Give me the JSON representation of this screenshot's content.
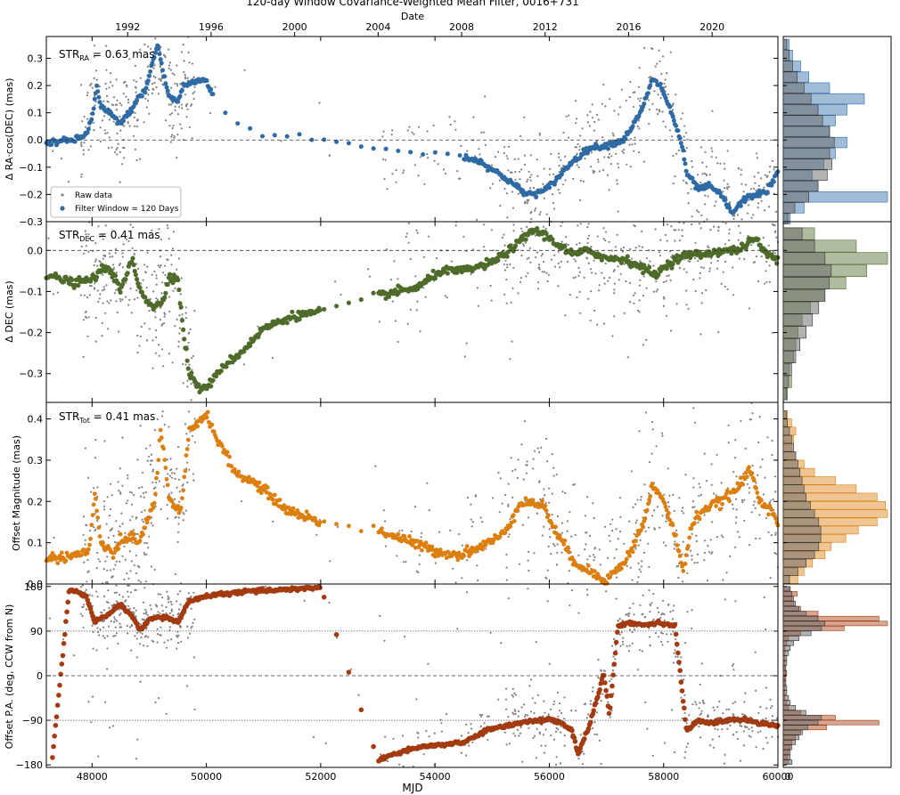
{
  "title": "120-day Window Covariance-Weighted Mean Filter, 0016+731",
  "top_axis_label": "Date",
  "bottom_axis_label": "MJD",
  "colors": {
    "raw": "#808080",
    "ra": "#2e6aa3",
    "dec": "#4e6b2a",
    "tot": "#db7f0f",
    "pa": "#a33a10"
  },
  "chart_data": [
    {
      "type": "scatter",
      "panel": "ra",
      "ylabel": "Δ RA·cos(DEC) (mas)",
      "stat": {
        "base": "STR",
        "sub": "RA",
        "value": " = 0.63 mas"
      },
      "xlim": [
        47200,
        60000
      ],
      "ylim": [
        -0.3,
        0.38
      ],
      "yticks": [
        -0.3,
        -0.2,
        -0.1,
        0.0,
        0.1,
        0.2,
        0.3
      ],
      "yticklabels": [
        "−0.3",
        "−0.2",
        "−0.1",
        "0.0",
        "0.1",
        "0.2",
        "0.3"
      ],
      "legend": {
        "position": "lower-left",
        "entries": [
          "Raw data",
          "Filter Window = 120 Days"
        ]
      },
      "filtered_keypoints": [
        [
          47200,
          -0.01
        ],
        [
          47700,
          0.0
        ],
        [
          47900,
          0.02
        ],
        [
          48020,
          0.1
        ],
        [
          48080,
          0.2
        ],
        [
          48150,
          0.12
        ],
        [
          48300,
          0.1
        ],
        [
          48500,
          0.06
        ],
        [
          48650,
          0.1
        ],
        [
          48800,
          0.15
        ],
        [
          48950,
          0.19
        ],
        [
          49050,
          0.28
        ],
        [
          49150,
          0.35
        ],
        [
          49250,
          0.24
        ],
        [
          49350,
          0.16
        ],
        [
          49500,
          0.14
        ],
        [
          49600,
          0.2
        ],
        [
          49900,
          0.22
        ],
        [
          50000,
          0.22
        ],
        [
          50200,
          0.12
        ],
        [
          50600,
          0.06
        ],
        [
          51000,
          0.02
        ],
        [
          51600,
          0.01
        ],
        [
          52000,
          0.0
        ],
        [
          53000,
          -0.03
        ],
        [
          53600,
          -0.05
        ],
        [
          54000,
          -0.05
        ],
        [
          54300,
          -0.05
        ],
        [
          54800,
          -0.08
        ],
        [
          55300,
          -0.15
        ],
        [
          55600,
          -0.2
        ],
        [
          55900,
          -0.19
        ],
        [
          56100,
          -0.15
        ],
        [
          56400,
          -0.08
        ],
        [
          56700,
          -0.03
        ],
        [
          57000,
          -0.02
        ],
        [
          57300,
          0.0
        ],
        [
          57600,
          0.1
        ],
        [
          57800,
          0.22
        ],
        [
          57950,
          0.2
        ],
        [
          58100,
          0.12
        ],
        [
          58300,
          0.0
        ],
        [
          58400,
          -0.12
        ],
        [
          58600,
          -0.18
        ],
        [
          58800,
          -0.17
        ],
        [
          59000,
          -0.2
        ],
        [
          59200,
          -0.27
        ],
        [
          59400,
          -0.22
        ],
        [
          59600,
          -0.2
        ],
        [
          59800,
          -0.19
        ],
        [
          60000,
          -0.12
        ]
      ],
      "filtered_gaps": [
        [
          50100,
          53000
        ],
        [
          53000,
          54500
        ]
      ],
      "raw_spread": 0.09,
      "histogram": {
        "bin_centers": [
          -0.29,
          -0.25,
          -0.21,
          -0.17,
          -0.13,
          -0.09,
          -0.05,
          -0.01,
          0.03,
          0.07,
          0.11,
          0.15,
          0.19,
          0.23,
          0.27,
          0.31,
          0.35
        ],
        "raw_counts": [
          4,
          10,
          22,
          30,
          38,
          42,
          40,
          44,
          40,
          34,
          30,
          24,
          18,
          12,
          8,
          5,
          3
        ],
        "filtered_counts": [
          6,
          18,
          90,
          30,
          25,
          35,
          45,
          55,
          40,
          45,
          55,
          70,
          40,
          22,
          15,
          8,
          5
        ]
      }
    },
    {
      "type": "scatter",
      "panel": "dec",
      "ylabel": "Δ DEC (mas)",
      "stat": {
        "base": "STR",
        "sub": "DEC",
        "value": " = 0.41 mas"
      },
      "xlim": [
        47200,
        60000
      ],
      "ylim": [
        -0.37,
        0.07
      ],
      "yticks": [
        -0.3,
        -0.2,
        -0.1,
        0.0
      ],
      "yticklabels": [
        "−0.3",
        "−0.2",
        "−0.1",
        "0.0"
      ],
      "filtered_keypoints": [
        [
          47200,
          -0.06
        ],
        [
          47700,
          -0.08
        ],
        [
          48000,
          -0.07
        ],
        [
          48150,
          -0.05
        ],
        [
          48300,
          -0.04
        ],
        [
          48500,
          -0.1
        ],
        [
          48700,
          -0.02
        ],
        [
          48800,
          -0.08
        ],
        [
          48950,
          -0.12
        ],
        [
          49100,
          -0.14
        ],
        [
          49250,
          -0.12
        ],
        [
          49350,
          -0.06
        ],
        [
          49500,
          -0.07
        ],
        [
          49600,
          -0.2
        ],
        [
          49700,
          -0.3
        ],
        [
          49900,
          -0.34
        ],
        [
          50100,
          -0.32
        ],
        [
          50300,
          -0.28
        ],
        [
          50600,
          -0.25
        ],
        [
          51000,
          -0.19
        ],
        [
          51500,
          -0.16
        ],
        [
          52000,
          -0.15
        ],
        [
          53000,
          -0.11
        ],
        [
          53700,
          -0.09
        ],
        [
          54100,
          -0.05
        ],
        [
          54500,
          -0.05
        ],
        [
          55000,
          -0.03
        ],
        [
          55400,
          0.01
        ],
        [
          55700,
          0.05
        ],
        [
          55900,
          0.04
        ],
        [
          56100,
          0.02
        ],
        [
          56400,
          -0.01
        ],
        [
          56700,
          0.0
        ],
        [
          57000,
          -0.02
        ],
        [
          57300,
          -0.02
        ],
        [
          57600,
          -0.04
        ],
        [
          57850,
          -0.06
        ],
        [
          58100,
          -0.03
        ],
        [
          58400,
          -0.01
        ],
        [
          58700,
          -0.01
        ],
        [
          59000,
          0.0
        ],
        [
          59300,
          0.0
        ],
        [
          59600,
          0.03
        ],
        [
          59800,
          -0.01
        ],
        [
          60000,
          -0.02
        ]
      ],
      "filtered_gaps": [
        [
          52000,
          53000
        ]
      ],
      "raw_spread": 0.08,
      "histogram": {
        "bin_centers": [
          -0.35,
          -0.32,
          -0.29,
          -0.26,
          -0.23,
          -0.2,
          -0.17,
          -0.14,
          -0.11,
          -0.08,
          -0.05,
          -0.02,
          0.01,
          0.04
        ],
        "raw_counts": [
          3,
          5,
          8,
          12,
          16,
          22,
          28,
          34,
          40,
          44,
          46,
          40,
          30,
          18
        ],
        "filtered_counts": [
          4,
          8,
          6,
          10,
          12,
          14,
          18,
          26,
          40,
          60,
          80,
          100,
          70,
          30
        ]
      }
    },
    {
      "type": "scatter",
      "panel": "tot",
      "ylabel": "Offset Magnitude (mas)",
      "stat": {
        "base": "STR",
        "sub": "Tot",
        "value": " = 0.41 mas"
      },
      "xlim": [
        47200,
        60000
      ],
      "ylim": [
        0.0,
        0.44
      ],
      "yticks": [
        0.0,
        0.1,
        0.2,
        0.3,
        0.4
      ],
      "yticklabels": [
        "0.0",
        "0.1",
        "0.2",
        "0.3",
        "0.4"
      ],
      "filtered_keypoints": [
        [
          47200,
          0.06
        ],
        [
          47700,
          0.07
        ],
        [
          47950,
          0.08
        ],
        [
          48050,
          0.22
        ],
        [
          48150,
          0.1
        ],
        [
          48350,
          0.07
        ],
        [
          48500,
          0.1
        ],
        [
          48700,
          0.12
        ],
        [
          48800,
          0.09
        ],
        [
          48950,
          0.15
        ],
        [
          49100,
          0.2
        ],
        [
          49200,
          0.38
        ],
        [
          49350,
          0.2
        ],
        [
          49550,
          0.17
        ],
        [
          49700,
          0.37
        ],
        [
          49900,
          0.4
        ],
        [
          50000,
          0.41
        ],
        [
          50200,
          0.35
        ],
        [
          50500,
          0.27
        ],
        [
          50900,
          0.24
        ],
        [
          51400,
          0.18
        ],
        [
          52000,
          0.15
        ],
        [
          53000,
          0.13
        ],
        [
          53600,
          0.1
        ],
        [
          54000,
          0.08
        ],
        [
          54400,
          0.07
        ],
        [
          54800,
          0.09
        ],
        [
          55200,
          0.12
        ],
        [
          55500,
          0.2
        ],
        [
          55900,
          0.19
        ],
        [
          56100,
          0.13
        ],
        [
          56400,
          0.06
        ],
        [
          56700,
          0.03
        ],
        [
          57000,
          0.01
        ],
        [
          57300,
          0.05
        ],
        [
          57500,
          0.1
        ],
        [
          57700,
          0.17
        ],
        [
          57800,
          0.24
        ],
        [
          58000,
          0.2
        ],
        [
          58200,
          0.12
        ],
        [
          58350,
          0.03
        ],
        [
          58500,
          0.15
        ],
        [
          58700,
          0.18
        ],
        [
          59000,
          0.2
        ],
        [
          59200,
          0.22
        ],
        [
          59400,
          0.25
        ],
        [
          59500,
          0.28
        ],
        [
          59700,
          0.2
        ],
        [
          59900,
          0.18
        ],
        [
          60000,
          0.14
        ]
      ],
      "filtered_gaps": [
        [
          52000,
          53000
        ]
      ],
      "raw_spread": 0.1,
      "histogram": {
        "bin_centers": [
          0.01,
          0.03,
          0.05,
          0.07,
          0.09,
          0.11,
          0.13,
          0.15,
          0.17,
          0.19,
          0.21,
          0.23,
          0.25,
          0.27,
          0.29,
          0.31,
          0.33,
          0.35,
          0.37,
          0.39,
          0.41
        ],
        "raw_counts": [
          6,
          14,
          22,
          30,
          34,
          36,
          36,
          34,
          30,
          26,
          22,
          20,
          18,
          16,
          14,
          12,
          10,
          8,
          6,
          4,
          3
        ],
        "filtered_counts": [
          14,
          20,
          28,
          40,
          46,
          60,
          72,
          90,
          100,
          98,
          90,
          70,
          50,
          30,
          20,
          12,
          8,
          10,
          12,
          8,
          4
        ]
      }
    },
    {
      "type": "scatter",
      "panel": "pa",
      "ylabel": "Offset P.A. (deg, CCW from N)",
      "xlim": [
        47200,
        60000
      ],
      "ylim": [
        -185,
        185
      ],
      "yticks": [
        -180,
        -90,
        0,
        90,
        180
      ],
      "yticklabels": [
        "−180",
        "−90",
        "0",
        "90",
        "180"
      ],
      "reference_lines": [
        90,
        -90
      ],
      "filtered_keypoints": [
        [
          47300,
          -175
        ],
        [
          47600,
          175
        ],
        [
          47900,
          160
        ],
        [
          48050,
          108
        ],
        [
          48300,
          125
        ],
        [
          48500,
          145
        ],
        [
          48700,
          120
        ],
        [
          48850,
          90
        ],
        [
          49000,
          115
        ],
        [
          49300,
          118
        ],
        [
          49500,
          108
        ],
        [
          49700,
          150
        ],
        [
          50000,
          160
        ],
        [
          50500,
          168
        ],
        [
          51000,
          172
        ],
        [
          52000,
          178
        ],
        [
          53000,
          -170
        ],
        [
          53500,
          -150
        ],
        [
          54000,
          -140
        ],
        [
          54500,
          -135
        ],
        [
          54900,
          -110
        ],
        [
          55300,
          -100
        ],
        [
          55600,
          -92
        ],
        [
          56000,
          -88
        ],
        [
          56200,
          -95
        ],
        [
          56400,
          -110
        ],
        [
          56500,
          -160
        ],
        [
          56700,
          -100
        ],
        [
          56850,
          -40
        ],
        [
          56950,
          5
        ],
        [
          57050,
          -80
        ],
        [
          57200,
          100
        ],
        [
          57400,
          108
        ],
        [
          57600,
          102
        ],
        [
          57900,
          108
        ],
        [
          58200,
          100
        ],
        [
          58400,
          -110
        ],
        [
          58600,
          -92
        ],
        [
          58900,
          -95
        ],
        [
          59200,
          -88
        ],
        [
          59500,
          -90
        ],
        [
          59800,
          -98
        ],
        [
          60000,
          -100
        ]
      ],
      "filtered_gaps": [
        [
          52000,
          53000
        ]
      ],
      "raw_spread": 30,
      "histogram": {
        "bin_centers": [
          -175,
          -165,
          -155,
          -145,
          -135,
          -125,
          -115,
          -105,
          -95,
          -85,
          -75,
          -65,
          -55,
          -45,
          -35,
          -25,
          -15,
          -5,
          5,
          15,
          25,
          35,
          45,
          55,
          65,
          75,
          85,
          95,
          105,
          115,
          125,
          135,
          145,
          155,
          165,
          175
        ],
        "raw_counts": [
          10,
          8,
          8,
          10,
          14,
          18,
          22,
          28,
          40,
          44,
          26,
          14,
          8,
          6,
          4,
          4,
          3,
          3,
          3,
          3,
          4,
          4,
          6,
          8,
          12,
          18,
          32,
          44,
          48,
          40,
          26,
          18,
          14,
          12,
          10,
          8
        ],
        "filtered_counts": [
          6,
          5,
          6,
          8,
          10,
          14,
          20,
          50,
          110,
          60,
          20,
          6,
          4,
          2,
          2,
          2,
          2,
          2,
          4,
          2,
          2,
          2,
          2,
          2,
          4,
          6,
          20,
          70,
          120,
          110,
          40,
          20,
          12,
          10,
          16,
          8
        ]
      }
    }
  ],
  "x_ticks_mjd": [
    48000,
    50000,
    52000,
    54000,
    56000,
    58000,
    60000
  ],
  "x_tick_labels_mjd": [
    "48000",
    "50000",
    "52000",
    "54000",
    "56000",
    "58000",
    "60000"
  ],
  "x_ticks_date": [
    48622,
    50083,
    51544,
    53005,
    54466,
    55927,
    57388,
    58849
  ],
  "x_tick_labels_date": [
    "1992",
    "1996",
    "2000",
    "2004",
    "2008",
    "2012",
    "2016",
    "2020"
  ],
  "hist_xlabel": "0"
}
